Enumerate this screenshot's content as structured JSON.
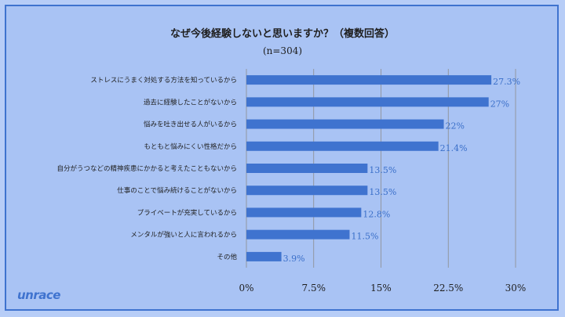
{
  "chart_data": {
    "type": "bar",
    "orientation": "horizontal",
    "title": "なぜ今後経験しないと思いますか？（複数回答）",
    "subtitle": "(n=304)",
    "categories": [
      "ストレスにうまく対処する方法を知っているから",
      "過去に経験したことがないから",
      "悩みを吐き出せる人がいるから",
      "もともと悩みにくい性格だから",
      "自分がうつなどの精神疾患にかかると考えたこともないから",
      "仕事のことで悩み続けることがないから",
      "プライベートが充実しているから",
      "メンタルが強いと人に言われるから",
      "その他"
    ],
    "values": [
      27.3,
      27,
      22,
      21.4,
      13.5,
      13.5,
      12.8,
      11.5,
      3.9
    ],
    "value_labels": [
      "27.3%",
      "27%",
      "22%",
      "21.4%",
      "13.5%",
      "13.5%",
      "12.8%",
      "11.5%",
      "3.9%"
    ],
    "xlim": [
      0,
      30
    ],
    "ticks": [
      0,
      7.5,
      15,
      22.5,
      30
    ],
    "tick_labels": [
      "0%",
      "7.5%",
      "15%",
      "22.5%",
      "30%"
    ],
    "bar_color": "#3f73cf",
    "grid": true
  },
  "logo": "unrace"
}
